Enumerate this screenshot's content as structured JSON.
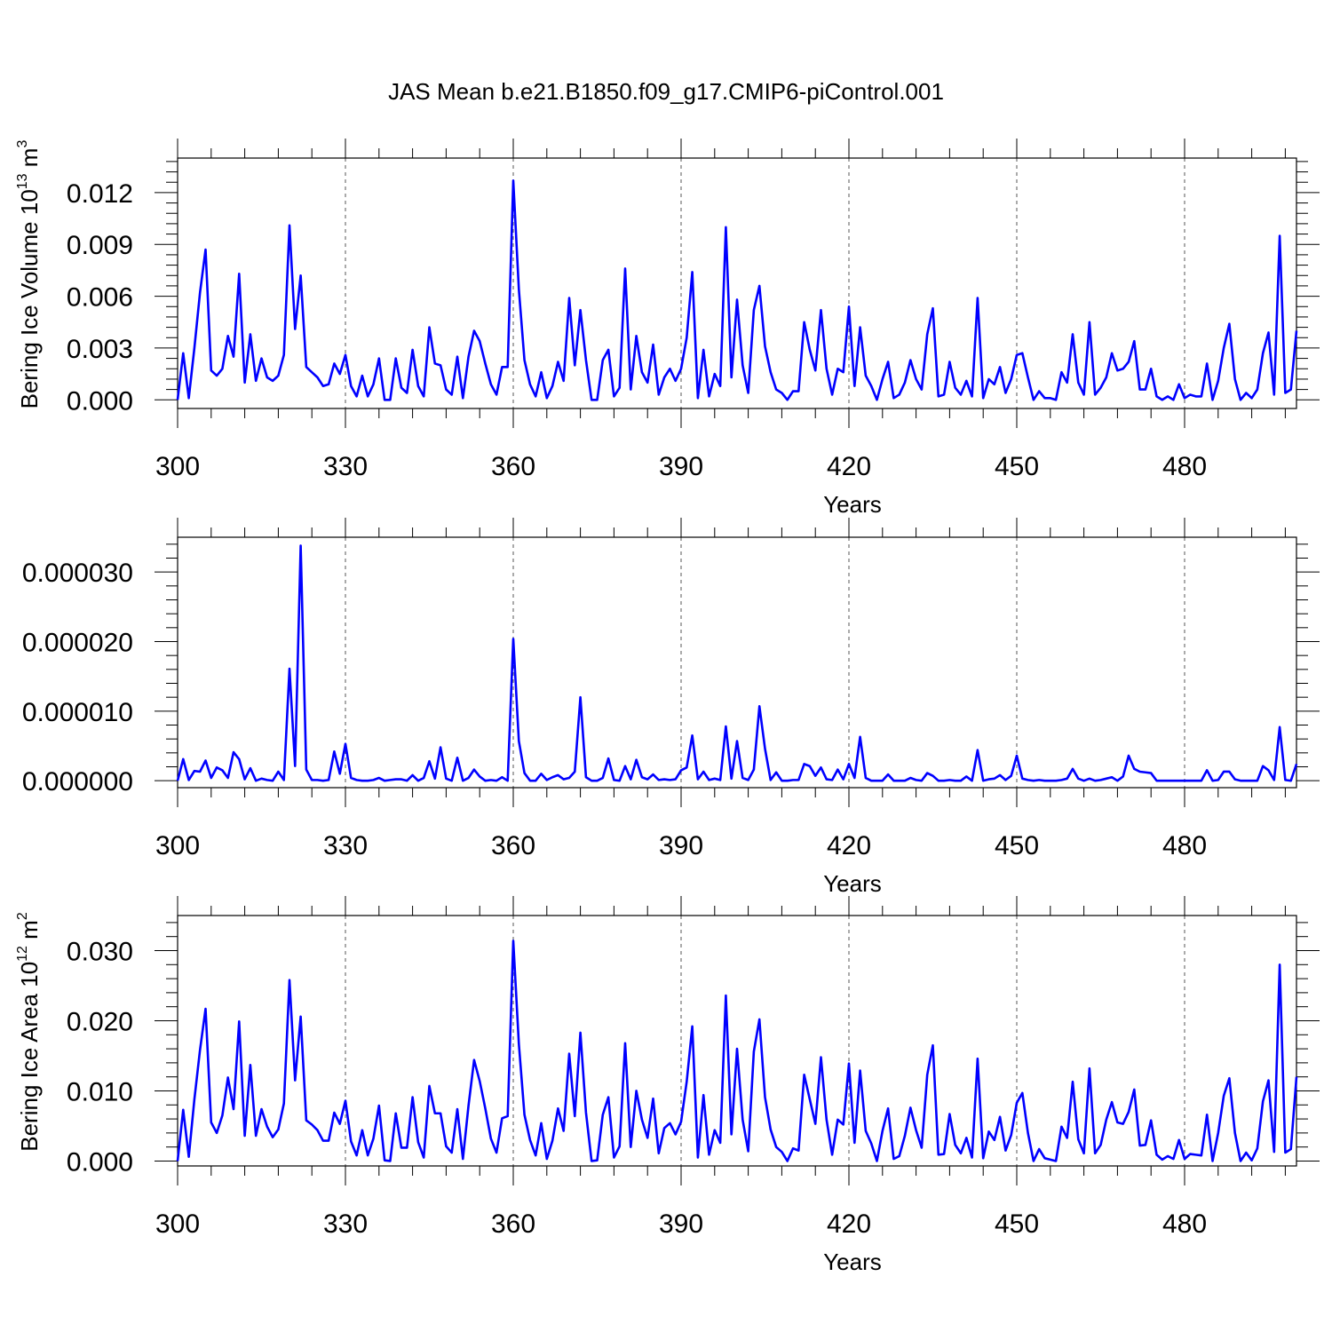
{
  "title": "JAS Mean b.e21.B1850.f09_g17.CMIP6-piControl.001",
  "style": {
    "line_color": "#0000ff",
    "axis_color": "#000000",
    "grid_color": "#555555"
  },
  "chart_data": [
    {
      "type": "line",
      "ylabel": {
        "text": "Bering Ice Volume 10",
        "exponent": "13",
        "unit": " m",
        "unit_exponent": "3"
      },
      "xlabel": "Years",
      "xlim": [
        300,
        500
      ],
      "ylim": [
        -0.0005,
        0.014
      ],
      "xticks": [
        300,
        330,
        360,
        390,
        420,
        450,
        480
      ],
      "yticks": [
        "0.000",
        "0.003",
        "0.006",
        "0.009",
        "0.012"
      ],
      "ytick_values": [
        0,
        0.003,
        0.006,
        0.009,
        0.012
      ],
      "grid": "vertical-dashed",
      "x_start": 300,
      "values": [
        0.0,
        0.0027,
        0.0001,
        0.003,
        0.0062,
        0.0087,
        0.0017,
        0.0014,
        0.0018,
        0.0037,
        0.0025,
        0.0073,
        0.001,
        0.0038,
        0.0011,
        0.0024,
        0.0013,
        0.0011,
        0.0014,
        0.0026,
        0.0101,
        0.0041,
        0.0072,
        0.0019,
        0.0016,
        0.0013,
        0.0008,
        0.0009,
        0.0021,
        0.0015,
        0.0026,
        0.0008,
        0.0002,
        0.0014,
        0.0002,
        0.0009,
        0.0024,
        0.0,
        0.0,
        0.0024,
        0.0007,
        0.0004,
        0.0029,
        0.0008,
        0.0002,
        0.0042,
        0.0021,
        0.002,
        0.0006,
        0.0003,
        0.0025,
        0.0001,
        0.0025,
        0.004,
        0.0034,
        0.0021,
        0.0009,
        0.0003,
        0.0019,
        0.0019,
        0.0127,
        0.0064,
        0.0023,
        0.0009,
        0.0002,
        0.0016,
        0.0001,
        0.0008,
        0.0022,
        0.0011,
        0.0059,
        0.002,
        0.0052,
        0.0023,
        0.0,
        0.0,
        0.0023,
        0.0029,
        0.0002,
        0.0007,
        0.0076,
        0.0006,
        0.0037,
        0.0016,
        0.001,
        0.0032,
        0.0003,
        0.0013,
        0.0018,
        0.0011,
        0.0018,
        0.0036,
        0.0074,
        0.0001,
        0.0029,
        0.0002,
        0.0015,
        0.0008,
        0.01,
        0.0013,
        0.0058,
        0.002,
        0.0004,
        0.0052,
        0.0066,
        0.0031,
        0.0016,
        0.0006,
        0.0004,
        0.0,
        0.0005,
        0.0005,
        0.0045,
        0.0029,
        0.0017,
        0.0052,
        0.0018,
        0.0003,
        0.0018,
        0.0016,
        0.0054,
        0.0008,
        0.0042,
        0.0014,
        0.0008,
        0.0,
        0.0012,
        0.0022,
        0.0001,
        0.0003,
        0.001,
        0.0023,
        0.0012,
        0.0006,
        0.0038,
        0.0053,
        0.0002,
        0.0003,
        0.0022,
        0.0007,
        0.0003,
        0.0011,
        0.0002,
        0.0059,
        0.0001,
        0.0012,
        0.0009,
        0.0019,
        0.0004,
        0.0012,
        0.0026,
        0.0027,
        0.0013,
        0.0,
        0.0005,
        0.0001,
        0.0001,
        0.0,
        0.0016,
        0.001,
        0.0038,
        0.001,
        0.0003,
        0.0045,
        0.0003,
        0.0007,
        0.0013,
        0.0027,
        0.0017,
        0.0018,
        0.0022,
        0.0034,
        0.0006,
        0.0006,
        0.0018,
        0.0002,
        0.0,
        0.0002,
        0.0,
        0.0009,
        0.0001,
        0.0003,
        0.0002,
        0.0002,
        0.0021,
        0.0,
        0.0011,
        0.003,
        0.0044,
        0.0012,
        0.0,
        0.0004,
        0.0001,
        0.0006,
        0.0027,
        0.0039,
        0.0003,
        0.0095,
        0.0004,
        0.0006,
        0.004
      ]
    },
    {
      "type": "line",
      "ylabel": null,
      "xlabel": "Years",
      "xlim": [
        300,
        500
      ],
      "ylim": [
        -1e-06,
        3.5e-05
      ],
      "xticks": [
        300,
        330,
        360,
        390,
        420,
        450,
        480
      ],
      "yticks": [
        "0.000000",
        "0.000010",
        "0.000020",
        "0.000030"
      ],
      "ytick_values": [
        0,
        1e-05,
        2e-05,
        3e-05
      ],
      "grid": "vertical-dashed",
      "x_start": 300,
      "values": [
        0.0,
        3.1e-06,
        1e-07,
        1.4e-06,
        1.3e-06,
        2.9e-06,
        4e-07,
        1.9e-06,
        1.5e-06,
        4e-07,
        4.1e-06,
        3.1e-06,
        2e-07,
        1.8e-06,
        0.0,
        3e-07,
        1e-07,
        0.0,
        1.3e-06,
        1e-07,
        1.61e-05,
        2.1e-06,
        3.38e-05,
        1.6e-06,
        1e-07,
        1e-07,
        0.0,
        1e-07,
        4.2e-06,
        1e-06,
        5.3e-06,
        4e-07,
        1e-07,
        0.0,
        0.0,
        1e-07,
        4e-07,
        0.0,
        1e-07,
        2e-07,
        2e-07,
        0.0,
        8e-07,
        0.0,
        4e-07,
        2.8e-06,
        3e-07,
        4.8e-06,
        3e-07,
        0.0,
        3.3e-06,
        0.0,
        4e-07,
        1.6e-06,
        6e-07,
        0.0,
        1e-07,
        0.0,
        5e-07,
        0.0,
        2.04e-05,
        5.7e-06,
        1.1e-06,
        0.0,
        0.0,
        1e-06,
        1e-07,
        5e-07,
        8e-07,
        2e-07,
        4e-07,
        1.3e-06,
        1.2e-05,
        5e-07,
        0.0,
        0.0,
        4e-07,
        3.2e-06,
        1e-07,
        0.0,
        2.1e-06,
        2e-07,
        3e-06,
        5e-07,
        2e-07,
        9e-07,
        1e-07,
        2e-07,
        1e-07,
        2e-07,
        1.5e-06,
        1.9e-06,
        6.5e-06,
        2e-07,
        1.3e-06,
        1e-07,
        3e-07,
        1e-07,
        7.8e-06,
        3e-07,
        5.7e-06,
        4e-07,
        1e-07,
        1.6e-06,
        1.07e-05,
        4.6e-06,
        1e-07,
        1.2e-06,
        0.0,
        0.0,
        1e-07,
        1e-07,
        2.4e-06,
        2.1e-06,
        7e-07,
        1.9e-06,
        2e-07,
        1e-07,
        1.6e-06,
        2e-07,
        2.4e-06,
        4e-07,
        6.3e-06,
        4e-07,
        0.0,
        0.0,
        0.0,
        9e-07,
        0.0,
        0.0,
        0.0,
        4e-07,
        1e-07,
        0.0,
        1.1e-06,
        7e-07,
        0.0,
        0.0,
        1e-07,
        0.0,
        0.0,
        6e-07,
        0.0,
        4.4e-06,
        0.0,
        2e-07,
        3e-07,
        8e-07,
        1e-07,
        7e-07,
        3.6e-06,
        3e-07,
        1e-07,
        0.0,
        1e-07,
        0.0,
        0.0,
        0.0,
        1e-07,
        3e-07,
        1.7e-06,
        3e-07,
        0.0,
        3e-07,
        0.0,
        1e-07,
        3e-07,
        5e-07,
        0.0,
        6e-07,
        3.6e-06,
        1.7e-06,
        1.3e-06,
        1.2e-06,
        1.1e-06,
        0.0,
        0.0,
        0.0,
        0.0,
        0.0,
        0.0,
        0.0,
        0.0,
        0.0,
        1.5e-06,
        0.0,
        1e-07,
        1.3e-06,
        1.3e-06,
        2e-07,
        0.0,
        0.0,
        0.0,
        0.0,
        2.1e-06,
        1.5e-06,
        1e-07,
        7.7e-06,
        1e-07,
        0.0,
        2.4e-06
      ]
    },
    {
      "type": "line",
      "ylabel": {
        "text": "Bering Ice Area 10",
        "exponent": "12",
        "unit": " m",
        "unit_exponent": "2"
      },
      "xlabel": "Years",
      "xlim": [
        300,
        500
      ],
      "ylim": [
        -0.0007,
        0.035
      ],
      "xticks": [
        300,
        330,
        360,
        390,
        420,
        450,
        480
      ],
      "yticks": [
        "0.000",
        "0.010",
        "0.020",
        "0.030"
      ],
      "ytick_values": [
        0,
        0.01,
        0.02,
        0.03
      ],
      "grid": "vertical-dashed",
      "x_start": 300,
      "values": [
        0.0,
        0.0073,
        0.0006,
        0.0088,
        0.0158,
        0.0217,
        0.0055,
        0.004,
        0.0065,
        0.0119,
        0.0074,
        0.0199,
        0.0036,
        0.0137,
        0.0036,
        0.0074,
        0.0049,
        0.0034,
        0.0045,
        0.0082,
        0.0258,
        0.0115,
        0.0206,
        0.0058,
        0.0052,
        0.0044,
        0.0029,
        0.0029,
        0.0069,
        0.0053,
        0.0086,
        0.0028,
        0.0008,
        0.0044,
        0.0008,
        0.0032,
        0.0079,
        0.0001,
        0.0,
        0.0068,
        0.0019,
        0.0019,
        0.0091,
        0.0027,
        0.0005,
        0.0107,
        0.0068,
        0.0068,
        0.0021,
        0.0012,
        0.0074,
        0.0003,
        0.0079,
        0.0144,
        0.0114,
        0.0075,
        0.0032,
        0.0012,
        0.0061,
        0.0064,
        0.0314,
        0.0167,
        0.0066,
        0.003,
        0.0008,
        0.0054,
        0.0003,
        0.0029,
        0.0075,
        0.0043,
        0.0153,
        0.0064,
        0.0183,
        0.0069,
        0.0,
        0.0001,
        0.0066,
        0.0091,
        0.0005,
        0.0021,
        0.0168,
        0.002,
        0.01,
        0.0059,
        0.0033,
        0.0089,
        0.0011,
        0.0047,
        0.0054,
        0.0038,
        0.0056,
        0.0113,
        0.0192,
        0.0005,
        0.0094,
        0.0009,
        0.0044,
        0.0026,
        0.0236,
        0.0038,
        0.016,
        0.0059,
        0.0014,
        0.0156,
        0.0202,
        0.0091,
        0.0045,
        0.002,
        0.0013,
        0.0,
        0.0018,
        0.0015,
        0.0123,
        0.0088,
        0.0053,
        0.0148,
        0.0059,
        0.0009,
        0.0059,
        0.0052,
        0.0139,
        0.0026,
        0.0129,
        0.0043,
        0.0025,
        0.0,
        0.0043,
        0.0075,
        0.0003,
        0.0007,
        0.0036,
        0.0076,
        0.0044,
        0.0019,
        0.0123,
        0.0165,
        0.0009,
        0.001,
        0.0067,
        0.0023,
        0.0011,
        0.0033,
        0.0005,
        0.0146,
        0.0004,
        0.0042,
        0.003,
        0.0063,
        0.0015,
        0.0037,
        0.0083,
        0.0097,
        0.004,
        0.0,
        0.0017,
        0.0004,
        0.0002,
        0.0,
        0.0049,
        0.0033,
        0.0113,
        0.0031,
        0.0011,
        0.0132,
        0.0011,
        0.0023,
        0.0059,
        0.0084,
        0.0055,
        0.0053,
        0.007,
        0.0102,
        0.0022,
        0.0023,
        0.0058,
        0.0009,
        0.0002,
        0.0007,
        0.0003,
        0.003,
        0.0003,
        0.001,
        0.0009,
        0.0008,
        0.0066,
        0.0,
        0.004,
        0.0093,
        0.0118,
        0.004,
        0.0,
        0.0012,
        0.0001,
        0.0018,
        0.0085,
        0.0115,
        0.0013,
        0.028,
        0.0012,
        0.0017,
        0.012
      ]
    }
  ]
}
